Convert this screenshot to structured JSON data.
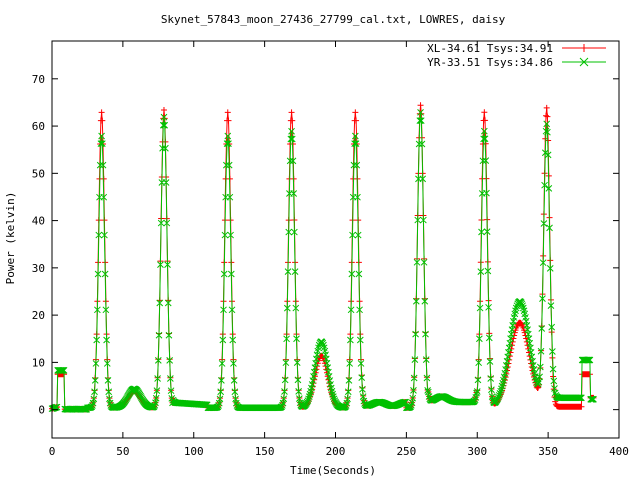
{
  "chart_data": {
    "type": "scatter",
    "title": "Skynet_57843_moon_27436_27799_cal.txt, LOWRES, daisy",
    "xlabel": "Time(Seconds)",
    "ylabel": "Power (kelvin)",
    "xlim": [
      0,
      400
    ],
    "ylim": [
      -6,
      78
    ],
    "xticks": [
      0,
      50,
      100,
      150,
      200,
      250,
      300,
      350,
      400
    ],
    "yticks": [
      0,
      10,
      20,
      30,
      40,
      50,
      60,
      70
    ],
    "grid": false,
    "legend_position": "top-right",
    "peaks": [
      {
        "t": 35,
        "xl": 63,
        "yr": 58
      },
      {
        "t": 79,
        "xl": 63.5,
        "yr": 62
      },
      {
        "t": 124,
        "xl": 63,
        "yr": 58
      },
      {
        "t": 169,
        "xl": 63,
        "yr": 59
      },
      {
        "t": 214,
        "xl": 63,
        "yr": 58
      },
      {
        "t": 260,
        "xl": 64.5,
        "yr": 63
      },
      {
        "t": 305,
        "xl": 63,
        "yr": 59
      },
      {
        "t": 349,
        "xl": 63.5,
        "yr": 60
      }
    ],
    "bumps": [
      {
        "t": 58,
        "xl": 3.5,
        "yr": 4
      },
      {
        "t": 190,
        "xl": 11,
        "yr": 14
      },
      {
        "t": 330,
        "xl": 18,
        "yr": 22.5
      }
    ],
    "series": [
      {
        "name": "XL-34.61 Tsys:34.91",
        "color": "#ff0000",
        "marker": "plus"
      },
      {
        "name": "YR-33.51 Tsys:34.86",
        "color": "#00c000",
        "marker": "cross"
      }
    ]
  }
}
